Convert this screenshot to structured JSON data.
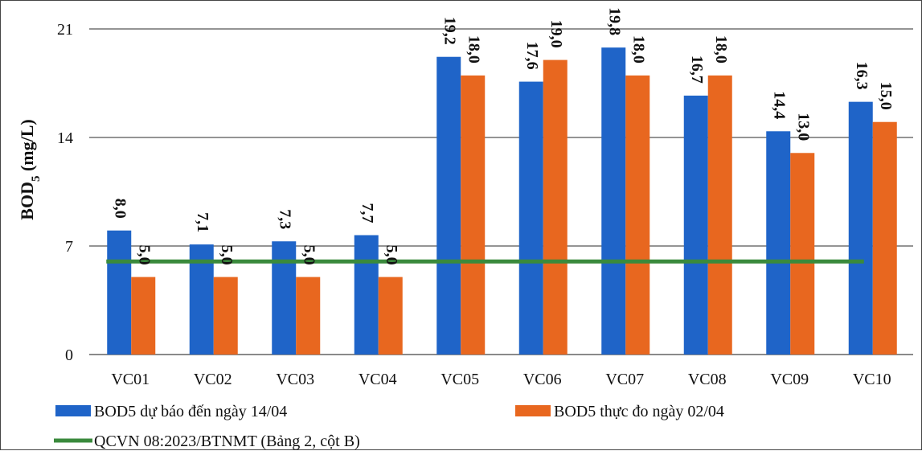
{
  "chart_data": {
    "type": "bar",
    "ylabel_main": "BOD",
    "ylabel_sub": "5",
    "ylabel_unit": " (mg/L)",
    "ylim": [
      0,
      21
    ],
    "yticks": [
      "0",
      "7",
      "14",
      "21"
    ],
    "grid": true,
    "legend_position": "bottom",
    "categories": [
      "VC01",
      "VC02",
      "VC03",
      "VC04",
      "VC05",
      "VC06",
      "VC07",
      "VC08",
      "VC09",
      "VC10"
    ],
    "series": [
      {
        "name": "BOD5 dự báo đến ngày 14/04",
        "color": "#1f64c8",
        "values": [
          8.0,
          7.1,
          7.3,
          7.7,
          19.2,
          17.6,
          19.8,
          16.7,
          14.4,
          16.3
        ],
        "labels": [
          "8,0",
          "7,1",
          "7,3",
          "7,7",
          "19,2",
          "17,6",
          "19,8",
          "16,7",
          "14,4",
          "16,3"
        ]
      },
      {
        "name": "BOD5 thực đo ngày 02/04",
        "color": "#e8671f",
        "values": [
          5.0,
          5.0,
          5.0,
          5.0,
          18.0,
          19.0,
          18.0,
          18.0,
          13.0,
          15.0
        ],
        "labels": [
          "5,0",
          "5,0",
          "5,0",
          "5,0",
          "18,0",
          "19,0",
          "18,0",
          "18,0",
          "13,0",
          "15,0"
        ]
      }
    ],
    "reference_line": {
      "name": "QCVN 08:2023/BTNMT (Bảng 2, cột B)",
      "value": 6,
      "color": "#3a8a3c"
    }
  }
}
